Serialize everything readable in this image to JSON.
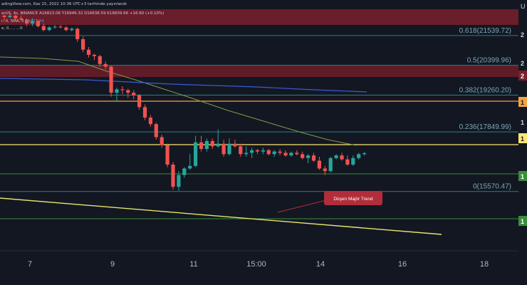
{
  "header": {
    "line1": "adingView.com, Kas 15, 2022 10:36 UTC+3 tarihinde yayınlandı",
    "line2": "erUS, 4s, BINANCE  A16823.06  Y16946.32  D16638.59  K16839.66  +16.60 (+0.10%)",
    "line3": "r, 0, SMA, 5",
    "line3_value": "19377.84",
    "line4": "e, 0,  ...  ...0"
  },
  "chart_data": {
    "type": "candlestick",
    "x_ticks": [
      "7",
      "9",
      "11",
      "15:00",
      "14",
      "16",
      "18"
    ],
    "y_axis_labels": [
      "2",
      "2",
      "2",
      "1",
      "1",
      "1",
      "1",
      "1"
    ],
    "y_axis_title": "U",
    "fibonacci_levels": [
      {
        "label": "0.618(21539.72)",
        "value": 21539.72
      },
      {
        "label": "0.5(20399.96)",
        "value": 20399.96
      },
      {
        "label": "0.382(19260.20)",
        "value": 19260.2
      },
      {
        "label": "0.236(17849.99)",
        "value": 17849.99
      },
      {
        "label": "0(15570.47)",
        "value": 15570.47
      }
    ],
    "ylim": [
      13300,
      22900
    ],
    "annotation": "Düşen Majör Trend",
    "candles": [
      [
        22300,
        22350,
        22100,
        22250
      ],
      [
        22250,
        22400,
        22200,
        22300
      ],
      [
        22300,
        22350,
        22150,
        22200
      ],
      [
        22200,
        22300,
        22100,
        22150
      ],
      [
        22150,
        22200,
        21900,
        22000
      ],
      [
        22000,
        22200,
        21900,
        22100
      ],
      [
        22100,
        22150,
        21850,
        21900
      ],
      [
        21900,
        22000,
        21700,
        21750
      ],
      [
        21750,
        21900,
        21700,
        21850
      ],
      [
        21850,
        21950,
        21800,
        21880
      ],
      [
        21880,
        21950,
        21820,
        21850
      ],
      [
        21850,
        21900,
        21700,
        21750
      ],
      [
        21750,
        21850,
        21700,
        21800
      ],
      [
        21800,
        21850,
        21300,
        21400
      ],
      [
        21400,
        21500,
        20900,
        21000
      ],
      [
        21000,
        21100,
        20700,
        20800
      ],
      [
        20800,
        20850,
        20600,
        20750
      ],
      [
        20750,
        20800,
        20350,
        20450
      ],
      [
        20450,
        20550,
        20250,
        20350
      ],
      [
        20350,
        20400,
        19200,
        19350
      ],
      [
        19350,
        19550,
        19000,
        19480
      ],
      [
        19480,
        19600,
        19300,
        19450
      ],
      [
        19450,
        19500,
        19150,
        19350
      ],
      [
        19350,
        19450,
        19100,
        19250
      ],
      [
        19250,
        19300,
        18700,
        18800
      ],
      [
        18800,
        18900,
        18300,
        18400
      ],
      [
        18400,
        18500,
        18050,
        18150
      ],
      [
        18150,
        18200,
        17550,
        17650
      ],
      [
        17650,
        17750,
        17250,
        17350
      ],
      [
        17350,
        17400,
        16500,
        16600
      ],
      [
        16600,
        16700,
        15650,
        15750
      ],
      [
        15750,
        16350,
        15600,
        16200
      ],
      [
        16200,
        16500,
        16100,
        16450
      ],
      [
        16450,
        17000,
        16400,
        16550
      ],
      [
        16550,
        17700,
        16500,
        17450
      ],
      [
        17450,
        17700,
        17100,
        17200
      ],
      [
        17200,
        17600,
        17100,
        17500
      ],
      [
        17500,
        17600,
        17200,
        17300
      ],
      [
        17300,
        17950,
        17250,
        17400
      ],
      [
        17400,
        17550,
        16900,
        17000
      ],
      [
        17000,
        17600,
        16950,
        17400
      ],
      [
        17400,
        17550,
        17250,
        17300
      ],
      [
        17300,
        17400,
        16900,
        17000
      ],
      [
        17000,
        17300,
        16900,
        17050
      ],
      [
        17050,
        17250,
        16850,
        17150
      ],
      [
        17150,
        17200,
        17000,
        17100
      ],
      [
        17100,
        17250,
        17000,
        17150
      ],
      [
        17150,
        17200,
        16950,
        17000
      ],
      [
        17000,
        17150,
        16900,
        17100
      ],
      [
        17100,
        17200,
        16950,
        17050
      ],
      [
        17050,
        17150,
        16900,
        16950
      ],
      [
        16950,
        17100,
        16900,
        17050
      ],
      [
        17050,
        17150,
        16950,
        17000
      ],
      [
        17000,
        17100,
        16800,
        16850
      ],
      [
        16850,
        17000,
        16650,
        16950
      ],
      [
        16950,
        17050,
        16700,
        16750
      ],
      [
        16750,
        16900,
        16400,
        16450
      ],
      [
        16450,
        16550,
        16200,
        16350
      ],
      [
        16350,
        16900,
        16300,
        16850
      ],
      [
        16850,
        17000,
        16800,
        16950
      ],
      [
        16950,
        17050,
        16750,
        16800
      ],
      [
        16800,
        16950,
        16550,
        16600
      ],
      [
        16600,
        16950,
        16550,
        16850
      ],
      [
        16850,
        17050,
        16800,
        17000
      ],
      [
        17000,
        17080,
        16950,
        17040
      ]
    ]
  },
  "colors": {
    "background": "#131722",
    "up": "#26a69a",
    "down": "#ef5350",
    "fib_line": "#2a7f85",
    "fib_text": "#7aa7b8",
    "red_zone": "#7a1f2b",
    "orange_line": "#f4a340",
    "yellow_line": "#ffe873",
    "green_line": "#3a8d3a",
    "trend_line": "#e8e36a",
    "sma_green": "#7f9c45",
    "sma_blue": "#3b5bd6",
    "annotation_bg": "#b22d3a"
  }
}
